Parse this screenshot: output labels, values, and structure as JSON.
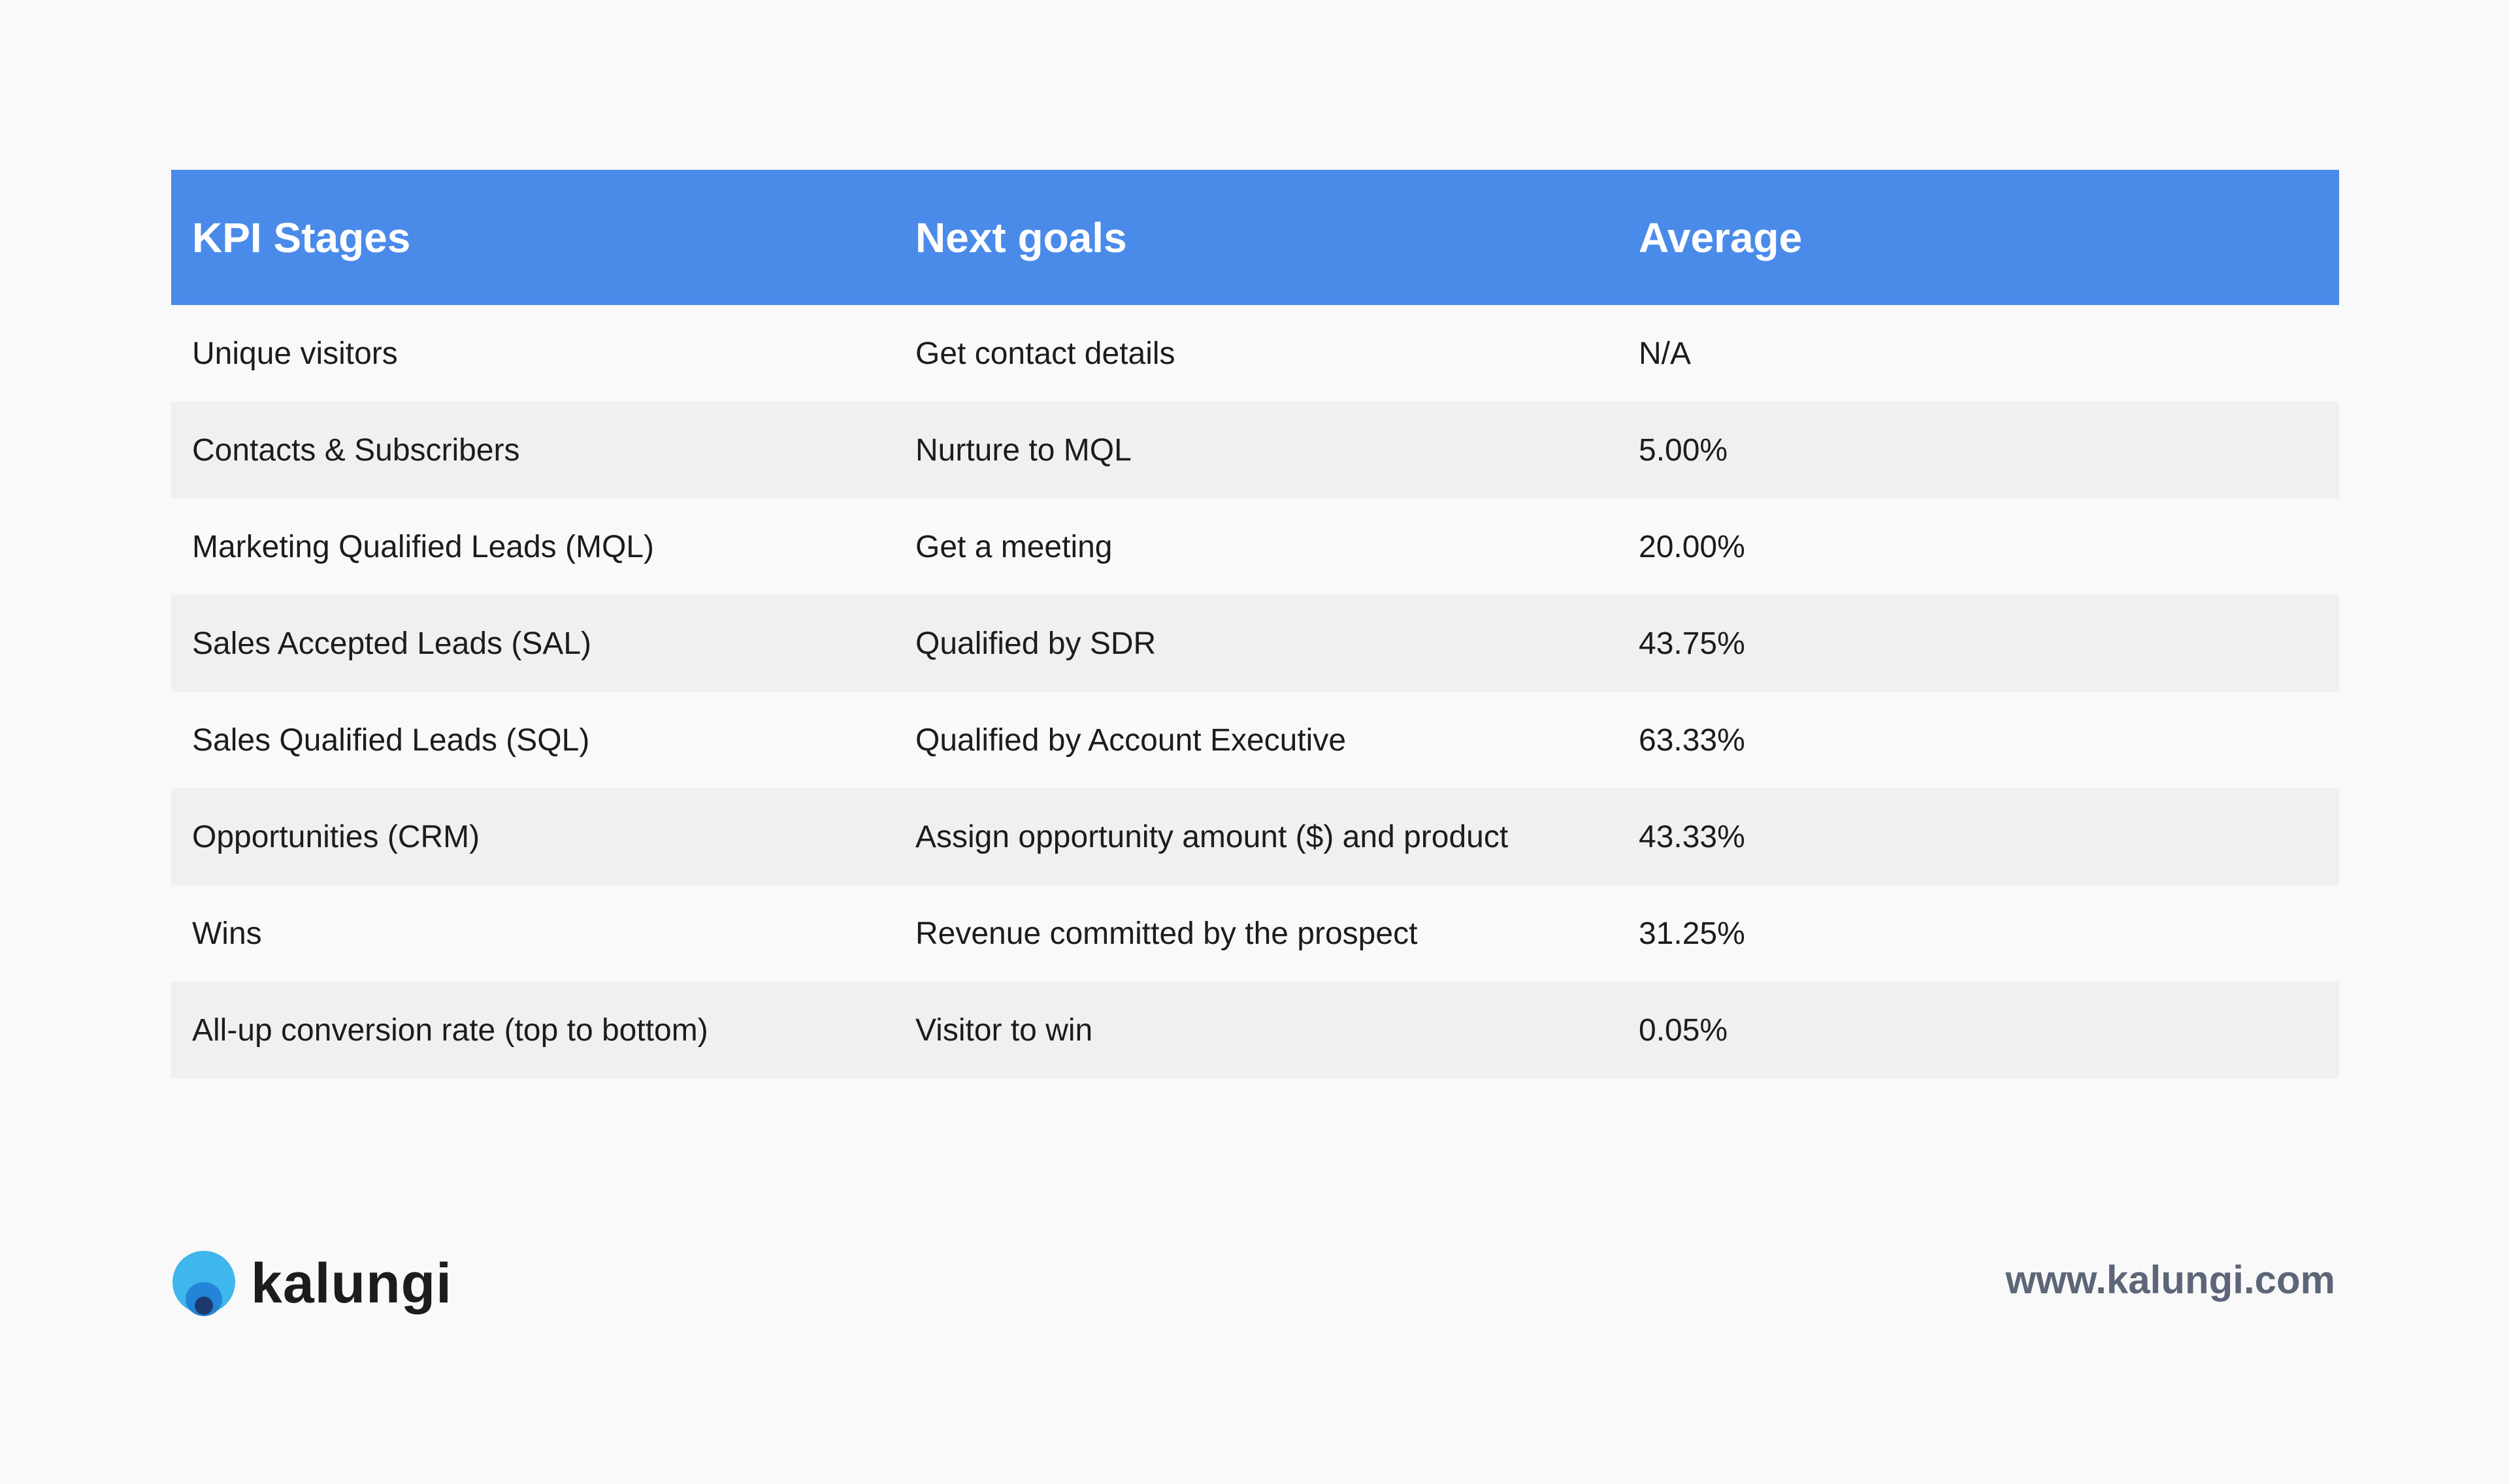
{
  "table": {
    "headers": [
      "KPI Stages",
      "Next goals",
      "Average"
    ],
    "rows": [
      [
        "Unique visitors",
        "Get contact details",
        "N/A"
      ],
      [
        "Contacts & Subscribers",
        "Nurture to MQL",
        "5.00%"
      ],
      [
        "Marketing Qualified Leads (MQL)",
        "Get a meeting",
        "20.00%"
      ],
      [
        "Sales Accepted Leads (SAL)",
        "Qualified by SDR",
        "43.75%"
      ],
      [
        "Sales Qualified Leads (SQL)",
        "Qualified by Account Executive",
        "63.33%"
      ],
      [
        "Opportunities (CRM)",
        "Assign opportunity amount ($) and product",
        "43.33%"
      ],
      [
        "Wins",
        "Revenue committed by the prospect",
        "31.25%"
      ],
      [
        "All-up conversion rate (top to bottom)",
        "Visitor to win",
        "0.05%"
      ]
    ]
  },
  "footer": {
    "brand": "kalungi",
    "url": "www.kalungi.com"
  },
  "colors": {
    "header_bg": "#4a8bea",
    "row_alt_bg": "#f0f0f0",
    "url_text": "#5c6678",
    "logo_outer": "#3fb6ec",
    "logo_mid": "#2384d8",
    "logo_inner": "#1d3a6e"
  },
  "icons": {
    "logo": "kalungi-logo-icon"
  }
}
